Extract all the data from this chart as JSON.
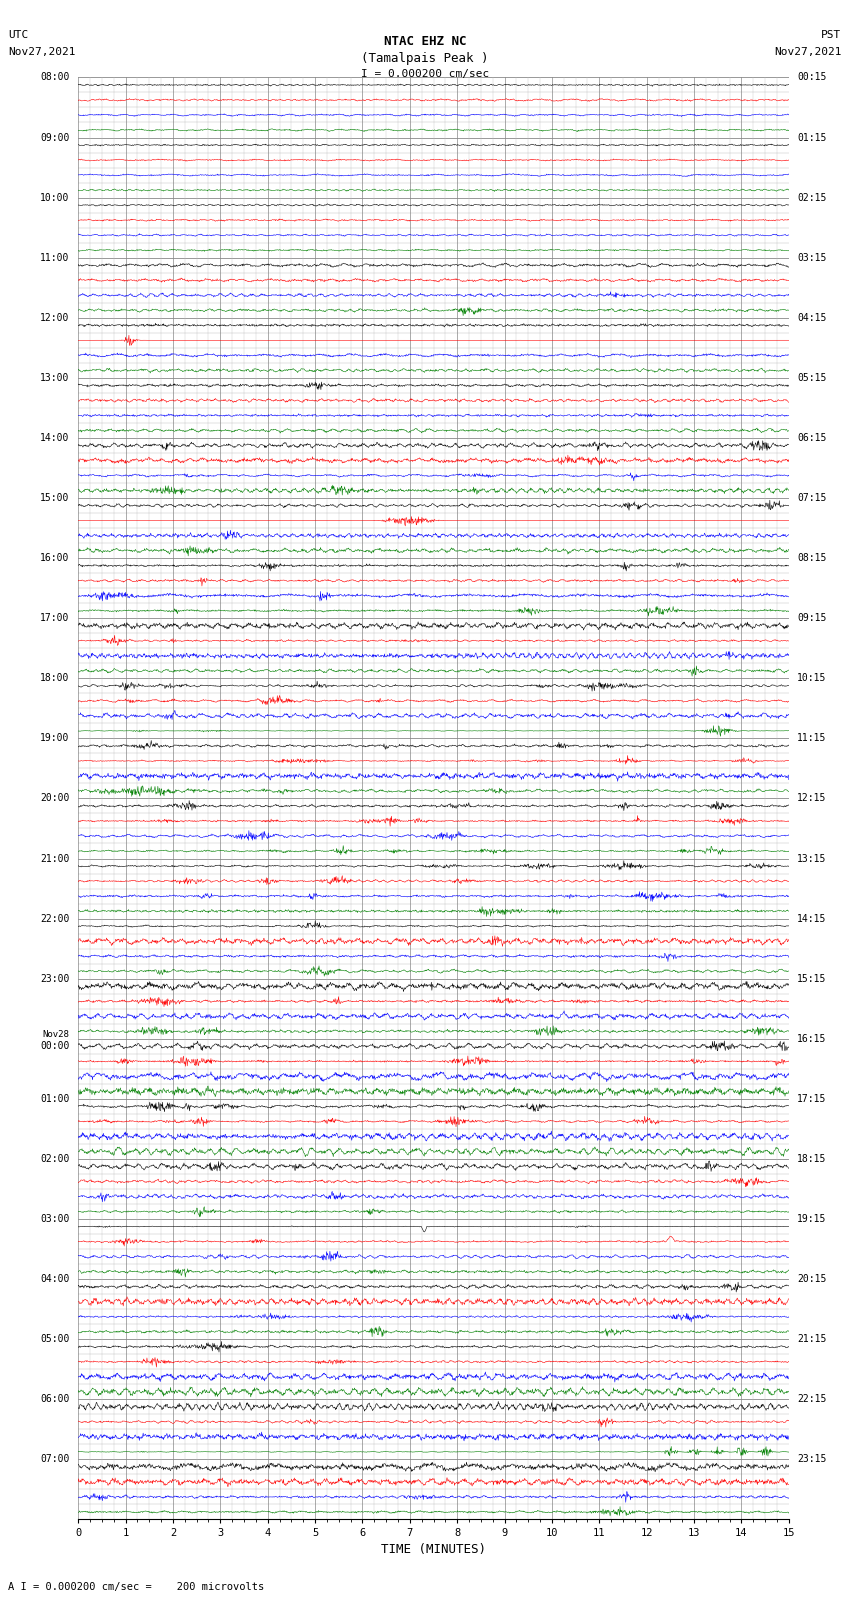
{
  "title_line1": "NTAC EHZ NC",
  "title_line2": "(Tamalpais Peak )",
  "scale_label": "I = 0.000200 cm/sec",
  "bottom_label": "A I = 0.000200 cm/sec =    200 microvolts",
  "xlabel": "TIME (MINUTES)",
  "left_times_utc": [
    "08:00",
    "09:00",
    "10:00",
    "11:00",
    "12:00",
    "13:00",
    "14:00",
    "15:00",
    "16:00",
    "17:00",
    "18:00",
    "19:00",
    "20:00",
    "21:00",
    "22:00",
    "23:00",
    "Nov28\n00:00",
    "01:00",
    "02:00",
    "03:00",
    "04:00",
    "05:00",
    "06:00",
    "07:00"
  ],
  "right_times_pst": [
    "00:15",
    "01:15",
    "02:15",
    "03:15",
    "04:15",
    "05:15",
    "06:15",
    "07:15",
    "08:15",
    "09:15",
    "10:15",
    "11:15",
    "12:15",
    "13:15",
    "14:15",
    "15:15",
    "16:15",
    "17:15",
    "18:15",
    "19:15",
    "20:15",
    "21:15",
    "22:15",
    "23:15"
  ],
  "n_hour_blocks": 24,
  "traces_per_block": 4,
  "n_cols": 15,
  "colors_cycle": [
    "black",
    "red",
    "blue",
    "green"
  ],
  "background_color": "white",
  "grid_color": "#888888",
  "minor_grid_color": "#bbbbbb",
  "text_color": "black",
  "fig_width": 8.5,
  "fig_height": 16.13,
  "noise_base": 0.008,
  "seed": 42
}
